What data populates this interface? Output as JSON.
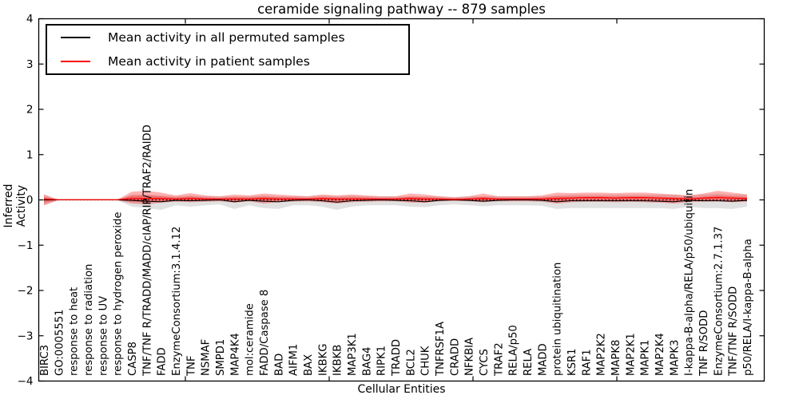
{
  "window": {
    "kind": "matplotlib-style figure",
    "background": "#ffffff"
  },
  "colors": {
    "permuted_line": "#000000",
    "patient_line": "#ff0000",
    "permuted_band": "rgba(120,120,120,0.22)",
    "patient_band": "rgba(255,0,0,0.30)",
    "frame": "#000000"
  },
  "legend": {
    "position": "upper left"
  },
  "chart_data": {
    "type": "line",
    "title": "ceramide signaling pathway -- 879 samples",
    "xlabel": "Cellular Entities",
    "ylabel": "Inferred Activity",
    "ylim": [
      -4,
      4
    ],
    "yticks": [
      -4,
      -3,
      -2,
      -1,
      0,
      1,
      2,
      3,
      4
    ],
    "ytick_labels": [
      "−4",
      "−3",
      "−2",
      "−1",
      "0",
      "1",
      "2",
      "3",
      "4"
    ],
    "grid": false,
    "zero_reference_line": {
      "style": "dotted",
      "color": "#000000",
      "y": 0
    },
    "legend_position": "upper left",
    "categories": [
      "BIRC3",
      "GO:0005551",
      "response to heat",
      "response to radiation",
      "response to UV",
      "response to hydrogen peroxide",
      "CASP8",
      "TNF/TNF R/TRADD/MADD/cIAP/RIP/TRAF2/RAIDD",
      "FADD",
      "EnzymeConsortium:3.1.4.12",
      "TNF",
      "NSMAF",
      "SMPD1",
      "MAP4K4",
      "mol:ceramide",
      "FADD/Caspase 8",
      "BAD",
      "AIFM1",
      "BAX",
      "IKBKG",
      "IKBKB",
      "MAP3K1",
      "BAG4",
      "RIPK1",
      "TRADD",
      "BCL2",
      "CHUK",
      "TNFRSF1A",
      "CRADD",
      "NFKBIA",
      "CYCS",
      "TRAF2",
      "RELA/p50",
      "RELA",
      "MADD",
      "protein ubiquitination",
      "KSR1",
      "RAF1",
      "MAP2K2",
      "MAPK8",
      "MAP2K1",
      "MAPK1",
      "MAP2K4",
      "MAPK3",
      "I-kappa-B-alpha/RELA/p50/ubiquitin",
      "TNF R/SODD",
      "EnzymeConsortium:2.7.1.37",
      "TNF/TNF R/SODD",
      "p50/RELA/I-kappa-B-alpha"
    ],
    "series": [
      {
        "name": "Mean activity in all permuted samples",
        "color": "#000000",
        "values": [
          0,
          0,
          0,
          0,
          0,
          0,
          -0.01,
          -0.03,
          -0.04,
          -0.01,
          -0.02,
          -0.01,
          0,
          -0.04,
          -0.01,
          -0.03,
          -0.04,
          -0.01,
          0,
          -0.02,
          -0.05,
          -0.02,
          -0.01,
          0,
          -0.01,
          -0.02,
          -0.04,
          -0.01,
          0,
          -0.01,
          -0.03,
          -0.01,
          0,
          0,
          -0.01,
          -0.04,
          -0.02,
          -0.02,
          -0.02,
          -0.02,
          -0.02,
          -0.02,
          -0.03,
          -0.04,
          -0.01,
          -0.02,
          -0.02,
          -0.03,
          -0.01
        ],
        "band_lo": [
          -0.12,
          -0.005,
          -0.005,
          -0.005,
          -0.005,
          -0.005,
          -0.15,
          -0.18,
          -0.22,
          -0.12,
          -0.15,
          -0.12,
          -0.1,
          -0.2,
          -0.12,
          -0.18,
          -0.2,
          -0.12,
          -0.12,
          -0.15,
          -0.22,
          -0.15,
          -0.12,
          -0.12,
          -0.12,
          -0.15,
          -0.16,
          -0.12,
          -0.1,
          -0.12,
          -0.14,
          -0.12,
          -0.12,
          -0.12,
          -0.13,
          -0.2,
          -0.18,
          -0.18,
          -0.18,
          -0.18,
          -0.18,
          -0.18,
          -0.18,
          -0.2,
          -0.15,
          -0.18,
          -0.18,
          -0.2,
          -0.15
        ],
        "band_hi": [
          0.12,
          0.005,
          0.005,
          0.005,
          0.005,
          0.005,
          0.12,
          0.12,
          0.1,
          0.08,
          0.1,
          0.08,
          0.08,
          0.08,
          0.08,
          0.1,
          0.08,
          0.08,
          0.08,
          0.1,
          0.08,
          0.1,
          0.08,
          0.08,
          0.08,
          0.08,
          0.08,
          0.08,
          0.06,
          0.08,
          0.08,
          0.08,
          0.08,
          0.08,
          0.08,
          0.1,
          0.12,
          0.12,
          0.12,
          0.12,
          0.12,
          0.12,
          0.12,
          0.12,
          0.1,
          0.12,
          0.14,
          0.12,
          0.12
        ]
      },
      {
        "name": "Mean activity in patient samples",
        "color": "#ff0000",
        "values": [
          0.02,
          0.005,
          0.005,
          0.005,
          0.005,
          0.005,
          0.03,
          0.03,
          0.03,
          0.02,
          0.03,
          0.02,
          0.02,
          0.02,
          0.02,
          0.03,
          0.02,
          0.02,
          0.02,
          0.03,
          0.02,
          0.02,
          0.02,
          0.02,
          0.02,
          0.03,
          0.02,
          0.02,
          0.01,
          0.02,
          0.03,
          0.02,
          0.02,
          0.02,
          0.02,
          0.03,
          0.04,
          0.05,
          0.05,
          0.04,
          0.05,
          0.05,
          0.04,
          0.03,
          0.02,
          0.04,
          0.05,
          0.04,
          0.03
        ],
        "band_lo": [
          -0.12,
          -0.005,
          -0.005,
          -0.005,
          -0.005,
          -0.005,
          -0.08,
          -0.1,
          -0.06,
          -0.04,
          -0.05,
          -0.04,
          -0.03,
          -0.06,
          -0.03,
          -0.08,
          -0.05,
          -0.04,
          -0.03,
          -0.05,
          -0.08,
          -0.05,
          -0.04,
          -0.03,
          -0.03,
          -0.06,
          -0.06,
          -0.03,
          -0.02,
          -0.03,
          -0.05,
          -0.03,
          -0.03,
          -0.03,
          -0.04,
          -0.08,
          -0.05,
          -0.04,
          -0.04,
          -0.05,
          -0.04,
          -0.05,
          -0.06,
          -0.08,
          -0.05,
          -0.04,
          -0.03,
          -0.05,
          -0.04
        ],
        "band_hi": [
          0.12,
          0.005,
          0.005,
          0.005,
          0.005,
          0.005,
          0.18,
          0.2,
          0.16,
          0.1,
          0.15,
          0.1,
          0.08,
          0.12,
          0.1,
          0.14,
          0.12,
          0.1,
          0.08,
          0.12,
          0.1,
          0.12,
          0.1,
          0.08,
          0.08,
          0.14,
          0.12,
          0.08,
          0.06,
          0.08,
          0.14,
          0.08,
          0.08,
          0.08,
          0.1,
          0.16,
          0.15,
          0.16,
          0.16,
          0.15,
          0.16,
          0.16,
          0.14,
          0.12,
          0.1,
          0.14,
          0.2,
          0.16,
          0.12
        ]
      }
    ]
  }
}
